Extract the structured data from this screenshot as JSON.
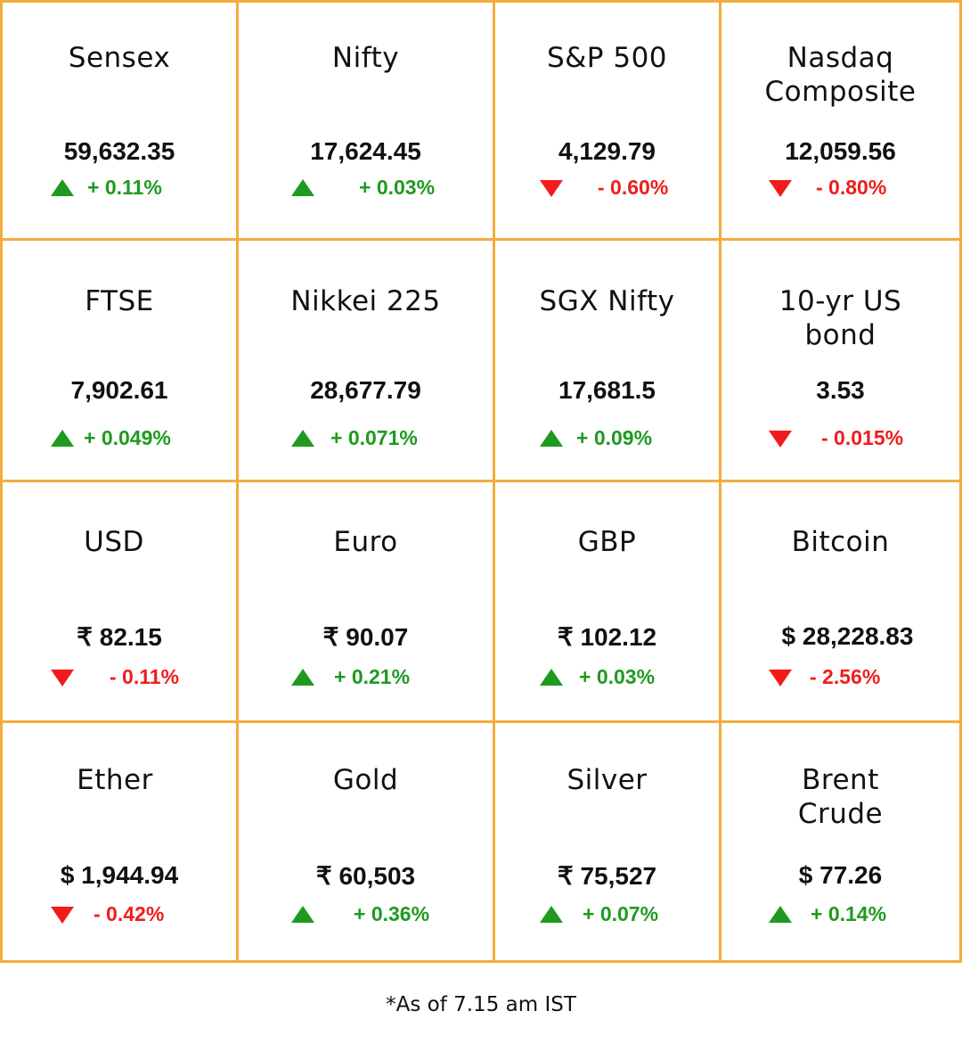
{
  "colors": {
    "border": "#f2ac3d",
    "up": "#1f9a1f",
    "down": "#f01c1c",
    "text": "#111111"
  },
  "rows": [
    [
      {
        "name": "Sensex",
        "value": "59,632.35",
        "change": "+ 0.11%",
        "direction": "up",
        "icon": "up-triangle-icon"
      },
      {
        "name": "Nifty",
        "value": "17,624.45",
        "change": "+ 0.03%",
        "direction": "up",
        "icon": "up-triangle-icon"
      },
      {
        "name": "S&P 500",
        "value": "4,129.79",
        "change": "- 0.60%",
        "direction": "down",
        "icon": "down-triangle-icon"
      },
      {
        "name": "Nasdaq Composite",
        "value": "12,059.56",
        "change": "- 0.80%",
        "direction": "down",
        "icon": "down-triangle-icon"
      }
    ],
    [
      {
        "name": "FTSE",
        "value": "7,902.61",
        "change": "+ 0.049%",
        "direction": "up",
        "icon": "up-triangle-icon"
      },
      {
        "name": "Nikkei 225",
        "value": "28,677.79",
        "change": "+ 0.071%",
        "direction": "up",
        "icon": "up-triangle-icon"
      },
      {
        "name": "SGX Nifty",
        "value": "17,681.5",
        "change": "+ 0.09%",
        "direction": "up",
        "icon": "up-triangle-icon"
      },
      {
        "name": "10-yr US bond",
        "value": "3.53",
        "change": "- 0.015%",
        "direction": "down",
        "icon": "down-triangle-icon"
      }
    ],
    [
      {
        "name": "USD",
        "value": "₹ 82.15",
        "change": "- 0.11%",
        "direction": "down",
        "icon": "down-triangle-icon"
      },
      {
        "name": "Euro",
        "value": "₹ 90.07",
        "change": "+ 0.21%",
        "direction": "up",
        "icon": "up-triangle-icon"
      },
      {
        "name": "GBP",
        "value": "₹ 102.12",
        "change": "+ 0.03%",
        "direction": "up",
        "icon": "up-triangle-icon"
      },
      {
        "name": "Bitcoin",
        "value": "$ 28,228.83",
        "change": "- 2.56%",
        "direction": "down",
        "icon": "down-triangle-icon"
      }
    ],
    [
      {
        "name": "Ether",
        "value": "$ 1,944.94",
        "change": "- 0.42%",
        "direction": "down",
        "icon": "down-triangle-icon"
      },
      {
        "name": "Gold",
        "value": "₹ 60,503",
        "change": "+ 0.36%",
        "direction": "up",
        "icon": "up-triangle-icon"
      },
      {
        "name": "Silver",
        "value": "₹ 75,527",
        "change": "+ 0.07%",
        "direction": "up",
        "icon": "up-triangle-icon"
      },
      {
        "name": "Brent Crude",
        "value": "$ 77.26",
        "change": "+ 0.14%",
        "direction": "up",
        "icon": "up-triangle-icon"
      }
    ]
  ],
  "footnote": "*As of 7.15 am IST"
}
